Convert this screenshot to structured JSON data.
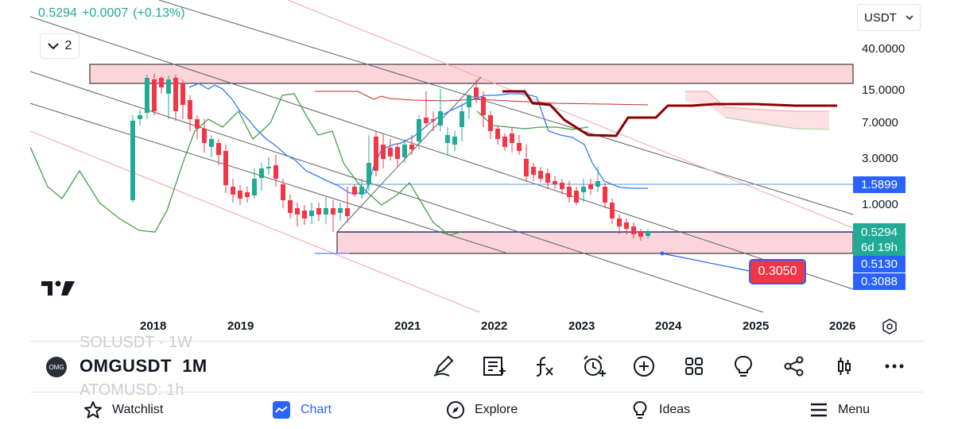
{
  "quote": {
    "price": "0.5294",
    "change": "+0.0007",
    "change_pct": "(+0.13%)"
  },
  "collapse_count": "2",
  "currency": "USDT",
  "price_axis": [
    "40.0000",
    "15.0000",
    "7.0000",
    "3.0000",
    "1.0000"
  ],
  "price_tags": {
    "level_1": "1.5899",
    "current_price": "0.5294",
    "countdown": "6d 19h",
    "level_2": "0.5130",
    "level_3": "0.3088"
  },
  "target_label": "0.3050",
  "time_axis": [
    "2018",
    "2019",
    "2021",
    "2022",
    "2023",
    "2024",
    "2025",
    "2026"
  ],
  "colors": {
    "up": "#22ab94",
    "down": "#f23645",
    "zone_fill": "#fbd5d9",
    "accent": "#2962ff",
    "conversion_line": "#3179f5",
    "lagging_span": "#43a047",
    "base_line": "#8b0000"
  },
  "symbol_bar": {
    "logo_text": "OMG",
    "symbol": "OMGUSDT",
    "interval": "1M",
    "ghost_above": "SOLUSDT · 1W",
    "ghost_below": "ATOMUSD: 1h"
  },
  "toolbar_icons": [
    "pen-icon",
    "notes-icon",
    "function-icon",
    "alert-icon",
    "add-icon",
    "grid-icon",
    "idea-icon",
    "share-icon",
    "candles-icon",
    "more-icon"
  ],
  "nav": {
    "watchlist": "Watchlist",
    "chart": "Chart",
    "explore": "Explore",
    "ideas": "Ideas",
    "menu": "Menu"
  }
}
